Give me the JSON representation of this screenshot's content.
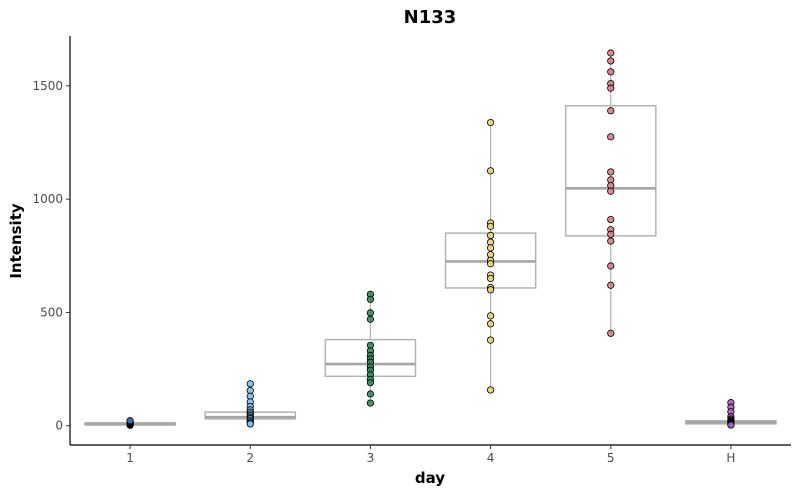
{
  "chart_data": {
    "type": "boxplot-with-points",
    "title": "N133",
    "xlabel": "day",
    "ylabel": "Intensity",
    "categories": [
      "1",
      "2",
      "3",
      "4",
      "5",
      "H"
    ],
    "ylim": [
      -85,
      1720
    ],
    "yticks": [
      0,
      500,
      1000,
      1500
    ],
    "grid": false,
    "colors": {
      "box_stroke": "#b3b3b3",
      "axis": "#000000",
      "point_outline": "#000000"
    },
    "groups": [
      {
        "category": "1",
        "color": "#3b6fb6",
        "box": {
          "q1": 3,
          "median": 8,
          "q3": 13,
          "whisker_low": 0,
          "whisker_high": 22
        },
        "points": [
          2,
          4,
          5,
          6,
          7,
          8,
          9,
          10,
          11,
          12,
          14,
          16,
          18,
          20,
          22
        ]
      },
      {
        "category": "2",
        "color": "#7ec0ee",
        "box": {
          "q1": 30,
          "median": 38,
          "q3": 60,
          "whisker_low": 8,
          "whisker_high": 185
        },
        "points": [
          185,
          155,
          130,
          105,
          85,
          70,
          60,
          52,
          45,
          38,
          32,
          25,
          18,
          12,
          8
        ]
      },
      {
        "category": "3",
        "color": "#2e8b57",
        "box": {
          "q1": 218,
          "median": 272,
          "q3": 380,
          "whisker_low": 100,
          "whisker_high": 580
        },
        "points": [
          580,
          558,
          498,
          470,
          355,
          330,
          310,
          295,
          280,
          260,
          245,
          225,
          205,
          190,
          140,
          100
        ]
      },
      {
        "category": "4",
        "color": "#e8d07a",
        "box": {
          "q1": 608,
          "median": 725,
          "q3": 850,
          "whisker_low": 158,
          "whisker_high": 1338
        },
        "points": [
          1338,
          1125,
          895,
          880,
          840,
          810,
          785,
          755,
          730,
          715,
          665,
          650,
          610,
          600,
          485,
          450,
          378,
          158
        ]
      },
      {
        "category": "5",
        "color": "#d77a8a",
        "box": {
          "q1": 838,
          "median": 1048,
          "q3": 1412,
          "whisker_low": 408,
          "whisker_high": 1645
        },
        "points": [
          1645,
          1610,
          1562,
          1510,
          1490,
          1390,
          1275,
          1120,
          1085,
          1060,
          1035,
          910,
          865,
          845,
          815,
          705,
          620,
          408
        ]
      },
      {
        "category": "H",
        "color": "#b05cc8",
        "box": {
          "q1": 8,
          "median": 15,
          "q3": 22,
          "whisker_low": 0,
          "whisker_high": 102
        },
        "points": [
          102,
          82,
          62,
          40,
          30,
          25,
          20,
          16,
          12,
          10,
          8,
          5,
          3
        ]
      }
    ]
  }
}
